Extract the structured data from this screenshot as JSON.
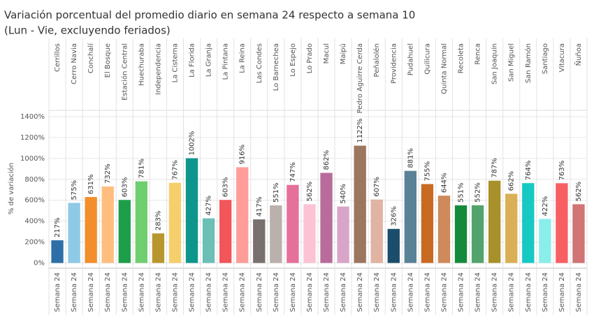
{
  "chart_data": {
    "type": "bar",
    "title": "Variación porcentual del promedio diario en semana 24 respecto a semana 10",
    "subtitle": "(Lun - Vie, excluyendo feriados)",
    "y_label": "% de variación",
    "subcategory": "Semana 24",
    "categories": [
      "Cerrillos",
      "Cerro Navia",
      "Conchalí",
      "El Bosque",
      "Estación Central",
      "Huechuraba",
      "Independencia",
      "La Cisterna",
      "La Florida",
      "La Granja",
      "La Pintana",
      "La Reina",
      "Las Condes",
      "Lo Barnechea",
      "Lo Espejo",
      "Lo Prado",
      "Macul",
      "Maipú",
      "Pedro Aguirre Cerda",
      "Peñalolén",
      "Providencia",
      "Pudahuel",
      "Quilicura",
      "Quinta Normal",
      "Recoleta",
      "Renca",
      "San Joaquín",
      "San Miguel",
      "San Ramón",
      "Santiago",
      "Vitacura",
      "Ñuñoa"
    ],
    "values": [
      217,
      575,
      631,
      732,
      603,
      781,
      283,
      767,
      1002,
      427,
      603,
      916,
      417,
      551,
      747,
      562,
      862,
      540,
      1122,
      607,
      326,
      881,
      755,
      644,
      551,
      552,
      787,
      662,
      764,
      422,
      763,
      562
    ],
    "value_labels": [
      "217%",
      "575%",
      "631%",
      "732%",
      "603%",
      "781%",
      "283%",
      "767%",
      "1002%",
      "427%",
      "603%",
      "916%",
      "417%",
      "551%",
      "747%",
      "562%",
      "862%",
      "540%",
      "1122%",
      "607%",
      "326%",
      "881%",
      "755%",
      "644%",
      "551%",
      "552%",
      "787%",
      "662%",
      "764%",
      "422%",
      "763%",
      "562%"
    ],
    "colors": [
      "#2e6fa7",
      "#8ecae6",
      "#f28e2b",
      "#ffbe7d",
      "#1f9e4a",
      "#6fcf6f",
      "#b8962e",
      "#f5cf6b",
      "#0f968c",
      "#6cbfb6",
      "#f2555a",
      "#ff9d9a",
      "#79706e",
      "#bab0ac",
      "#e5709a",
      "#fbc3d4",
      "#b86c9c",
      "#d8a5c8",
      "#9d7660",
      "#e0b3a2",
      "#1b4e6b",
      "#5a8297",
      "#c96a22",
      "#cf8a5b",
      "#158a3c",
      "#53a46c",
      "#a8902a",
      "#d9b055",
      "#17c9c3",
      "#8aeeea",
      "#f85f62",
      "#d07474"
    ],
    "ylim": [
      -50,
      1460
    ],
    "yticks": [
      {
        "value": 0,
        "label": "0%"
      },
      {
        "value": 200,
        "label": "200%"
      },
      {
        "value": 400,
        "label": "400%"
      },
      {
        "value": 600,
        "label": "600%"
      },
      {
        "value": 800,
        "label": "800%"
      },
      {
        "value": 1000,
        "label": "1000%"
      },
      {
        "value": 1200,
        "label": "1200%"
      },
      {
        "value": 1400,
        "label": "1400%"
      }
    ],
    "grid": true
  }
}
